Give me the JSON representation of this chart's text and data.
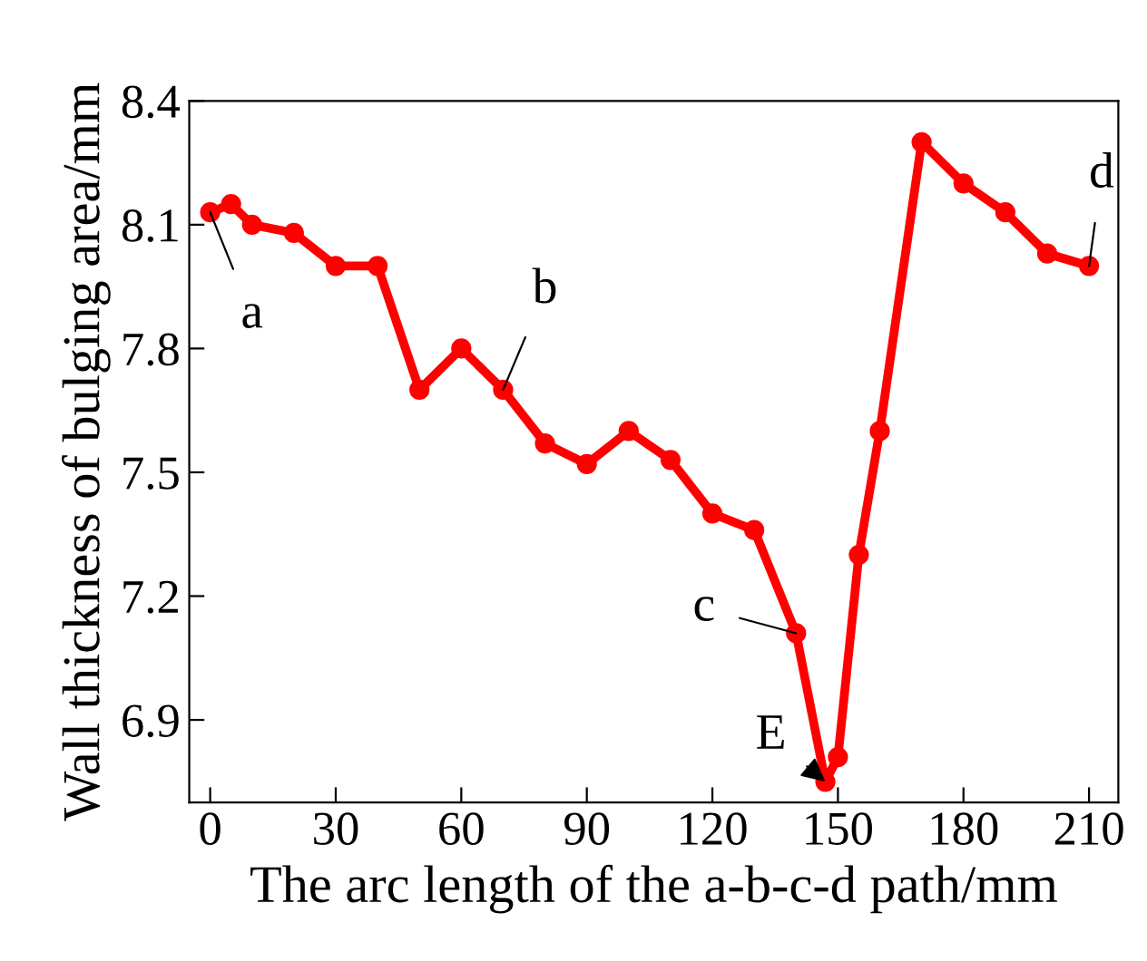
{
  "chart_data": {
    "type": "line",
    "xlabel": "The arc length of the a-b-c-d path/mm",
    "ylabel": "Wall thickness of bulging area/mm",
    "x": [
      0,
      5,
      10,
      20,
      30,
      40,
      50,
      60,
      70,
      80,
      90,
      100,
      110,
      120,
      130,
      140,
      147,
      150,
      155,
      160,
      170,
      180,
      190,
      200,
      210
    ],
    "series": [
      {
        "color": "#ff0000",
        "values": [
          8.13,
          8.15,
          8.1,
          8.08,
          8.0,
          8.0,
          7.7,
          7.8,
          7.7,
          7.57,
          7.52,
          7.6,
          7.53,
          7.4,
          7.36,
          7.11,
          6.75,
          6.81,
          7.3,
          7.6,
          8.3,
          8.2,
          8.13,
          8.03,
          8.0
        ]
      }
    ],
    "marker": "circle",
    "xlim": [
      -5,
      217
    ],
    "ylim": [
      6.7,
      8.4
    ],
    "xticks": [
      0,
      30,
      60,
      90,
      120,
      150,
      180,
      210
    ],
    "yticks": [
      6.9,
      7.2,
      7.5,
      7.8,
      8.1,
      8.4
    ],
    "annotations": [
      {
        "text": "a",
        "x": 0,
        "y": 8.13
      },
      {
        "text": "b",
        "x": 70,
        "y": 7.7
      },
      {
        "text": "c",
        "x": 140,
        "y": 7.11
      },
      {
        "text": "E",
        "x": 147,
        "y": 6.75
      },
      {
        "text": "d",
        "x": 210,
        "y": 8.0
      }
    ],
    "grid": false
  }
}
